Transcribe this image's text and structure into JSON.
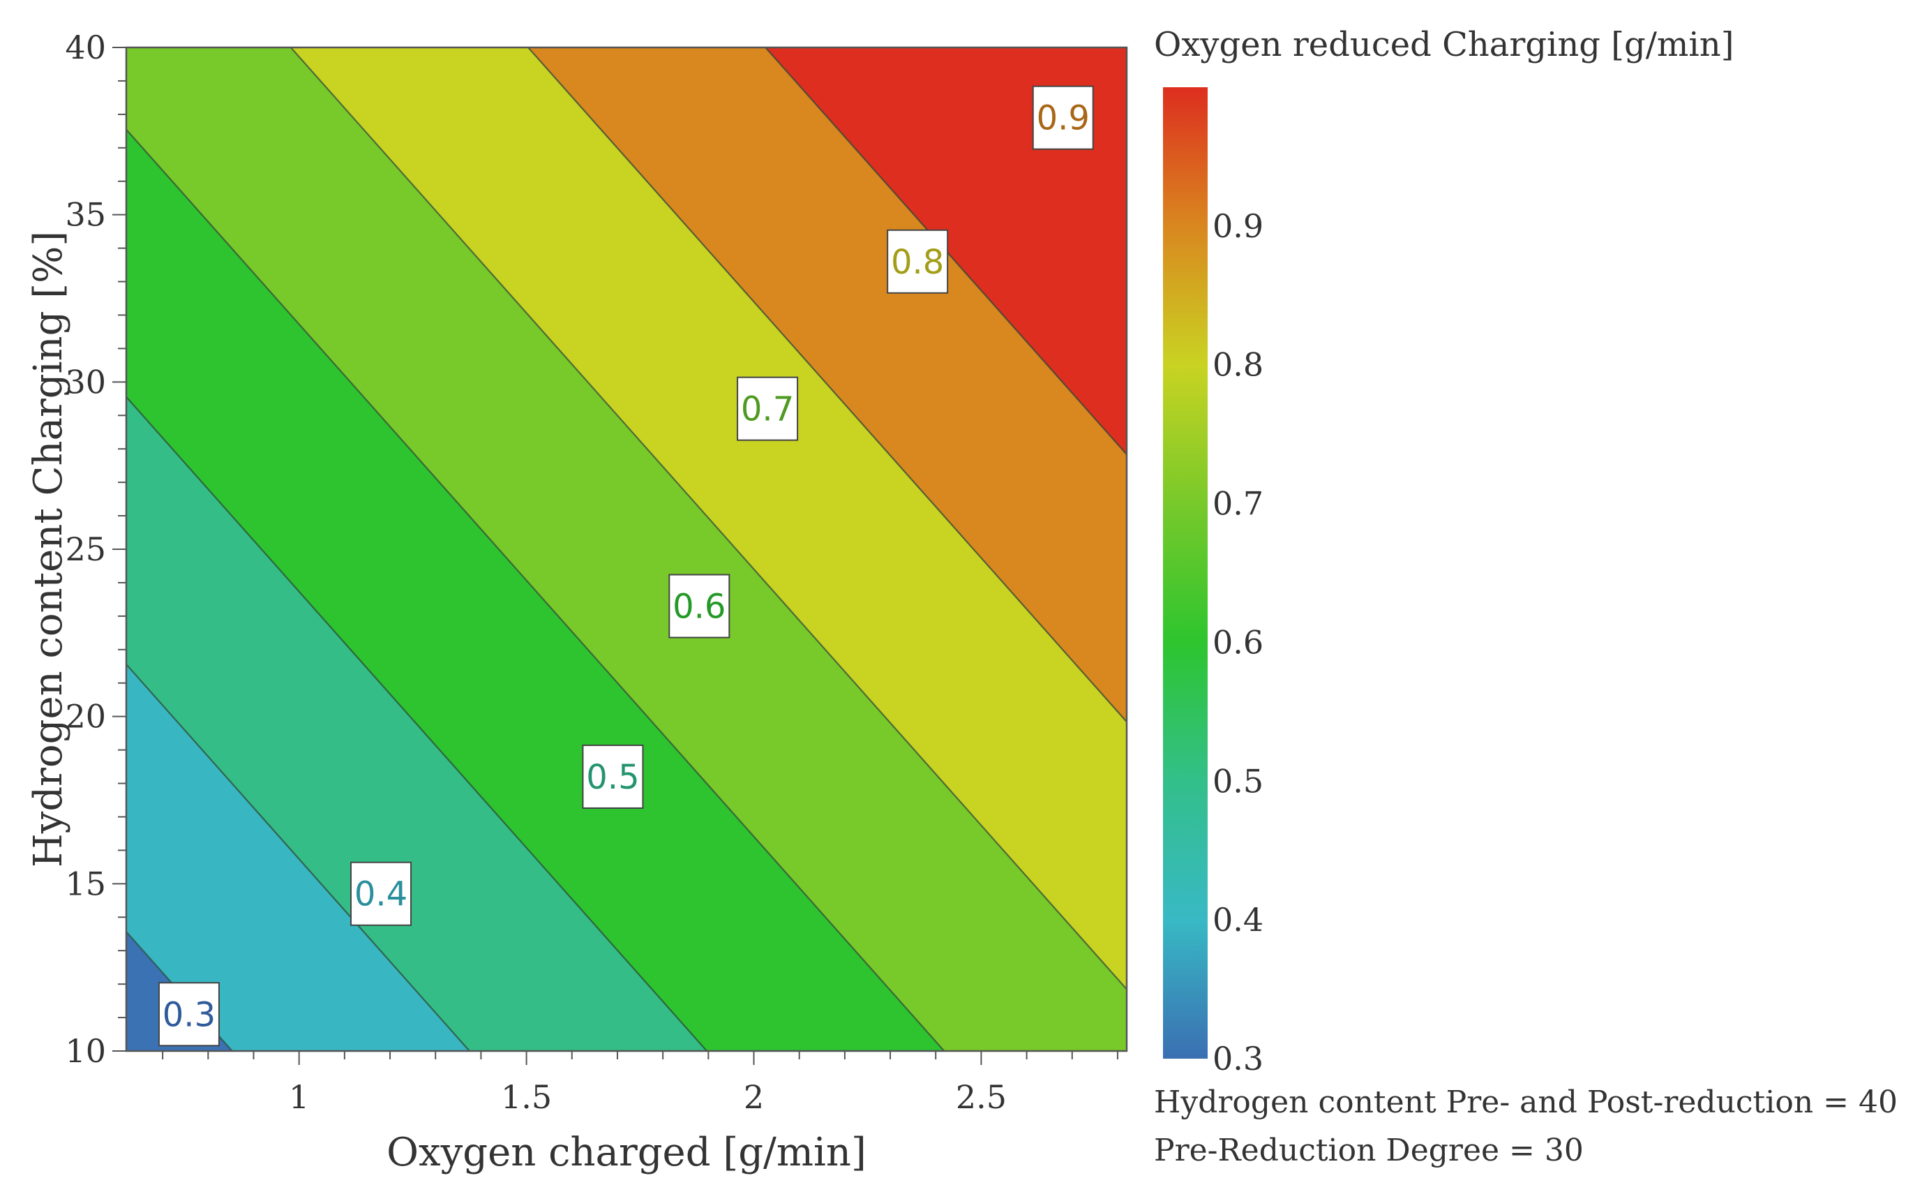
{
  "chart_data": {
    "type": "contour",
    "title": "",
    "xlabel": "Oxygen charged [g/min]",
    "ylabel": "Hydrogen content Charging [%]",
    "xlim": [
      0.62,
      2.82
    ],
    "ylim": [
      10,
      40
    ],
    "x_ticks": [
      1,
      1.5,
      2,
      2.5
    ],
    "y_ticks": [
      10,
      15,
      20,
      25,
      30,
      35,
      40
    ],
    "x_tick_labels": [
      "1",
      "1.5",
      "2",
      "2.5"
    ],
    "y_tick_labels": [
      "10",
      "15",
      "20",
      "25",
      "30",
      "35",
      "40"
    ],
    "response": {
      "name": "Oxygen reduced Charging [g/min]",
      "model": "linear",
      "intercept": 0.0115,
      "coef_x": 0.1916,
      "coef_y": 0.01251
    },
    "levels": [
      0.3,
      0.4,
      0.5,
      0.6,
      0.7,
      0.8,
      0.9
    ],
    "contour_labels": [
      {
        "text": "0.3",
        "x": 0.758,
        "y": 11.1
      },
      {
        "text": "0.4",
        "x": 1.18,
        "y": 14.7
      },
      {
        "text": "0.5",
        "x": 1.69,
        "y": 18.2
      },
      {
        "text": "0.6",
        "x": 1.88,
        "y": 23.3
      },
      {
        "text": "0.7",
        "x": 2.03,
        "y": 29.2
      },
      {
        "text": "0.8",
        "x": 2.36,
        "y": 33.6
      },
      {
        "text": "0.9",
        "x": 2.68,
        "y": 37.9
      }
    ],
    "colorbar": {
      "title": "Oxygen reduced Charging [g/min]",
      "range": [
        0.3,
        1.0
      ],
      "tick_labels": [
        "0.3",
        "0.4",
        "0.5",
        "0.6",
        "0.7",
        "0.8",
        "0.9"
      ],
      "tick_values": [
        0.3,
        0.4,
        0.5,
        0.6,
        0.7,
        0.8,
        0.9
      ]
    },
    "band_colors": [
      "#3a72b4",
      "#38b6c2",
      "#34bd86",
      "#2dc42f",
      "#78c92a",
      "#c9d322",
      "#d9871f",
      "#dd2e1f"
    ],
    "colorbar_gradient": [
      {
        "v": 0.3,
        "c": "#3a6fb2"
      },
      {
        "v": 0.4,
        "c": "#38b9c4"
      },
      {
        "v": 0.5,
        "c": "#33bf8a"
      },
      {
        "v": 0.6,
        "c": "#2ec52f"
      },
      {
        "v": 0.7,
        "c": "#78c92a"
      },
      {
        "v": 0.8,
        "c": "#c9d322"
      },
      {
        "v": 0.9,
        "c": "#d9871f"
      },
      {
        "v": 1.0,
        "c": "#dd2e1f"
      }
    ],
    "label_colors": [
      "#2f5b9a",
      "#2a8f9c",
      "#249470",
      "#239a27",
      "#4f9a22",
      "#a39e18",
      "#a86617"
    ],
    "footnotes": [
      "Hydrogen content Pre- and Post-reduction = 40",
      "Pre-Reduction Degree = 30"
    ]
  }
}
